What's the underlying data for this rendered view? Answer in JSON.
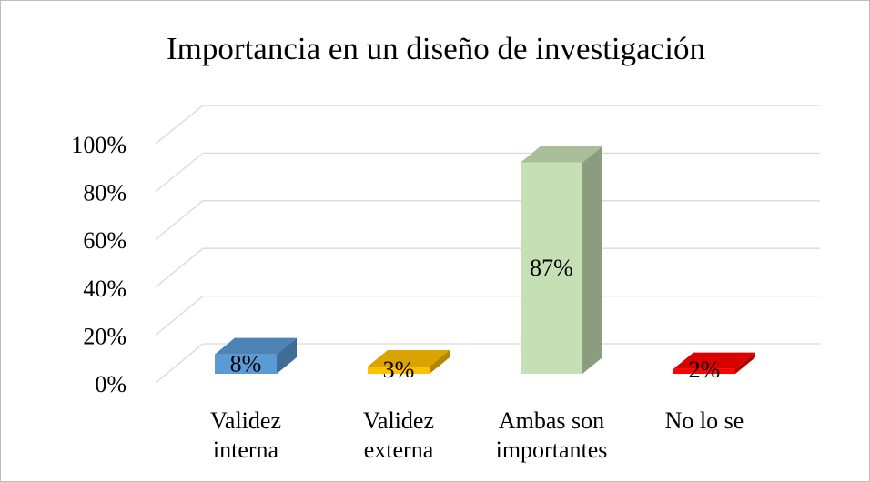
{
  "chart_data": {
    "type": "bar3d",
    "title": "Importancia en un diseño de investigación",
    "categories": [
      "Validez interna",
      "Validez externa",
      "Ambas son importantes",
      "No lo se"
    ],
    "values": [
      8,
      3,
      87,
      2
    ],
    "value_labels": [
      "8%",
      "3%",
      "87%",
      "2%"
    ],
    "colors": [
      "#5b9bd5",
      "#ffc000",
      "#c5e0b4",
      "#ff0000"
    ],
    "ylim": [
      0,
      100
    ],
    "yticks": [
      {
        "value": 0,
        "label": "0%"
      },
      {
        "value": 20,
        "label": "20%"
      },
      {
        "value": 40,
        "label": "40%"
      },
      {
        "value": 60,
        "label": "60%"
      },
      {
        "value": 80,
        "label": "80%"
      },
      {
        "value": 100,
        "label": "100%"
      }
    ],
    "grid": true
  }
}
